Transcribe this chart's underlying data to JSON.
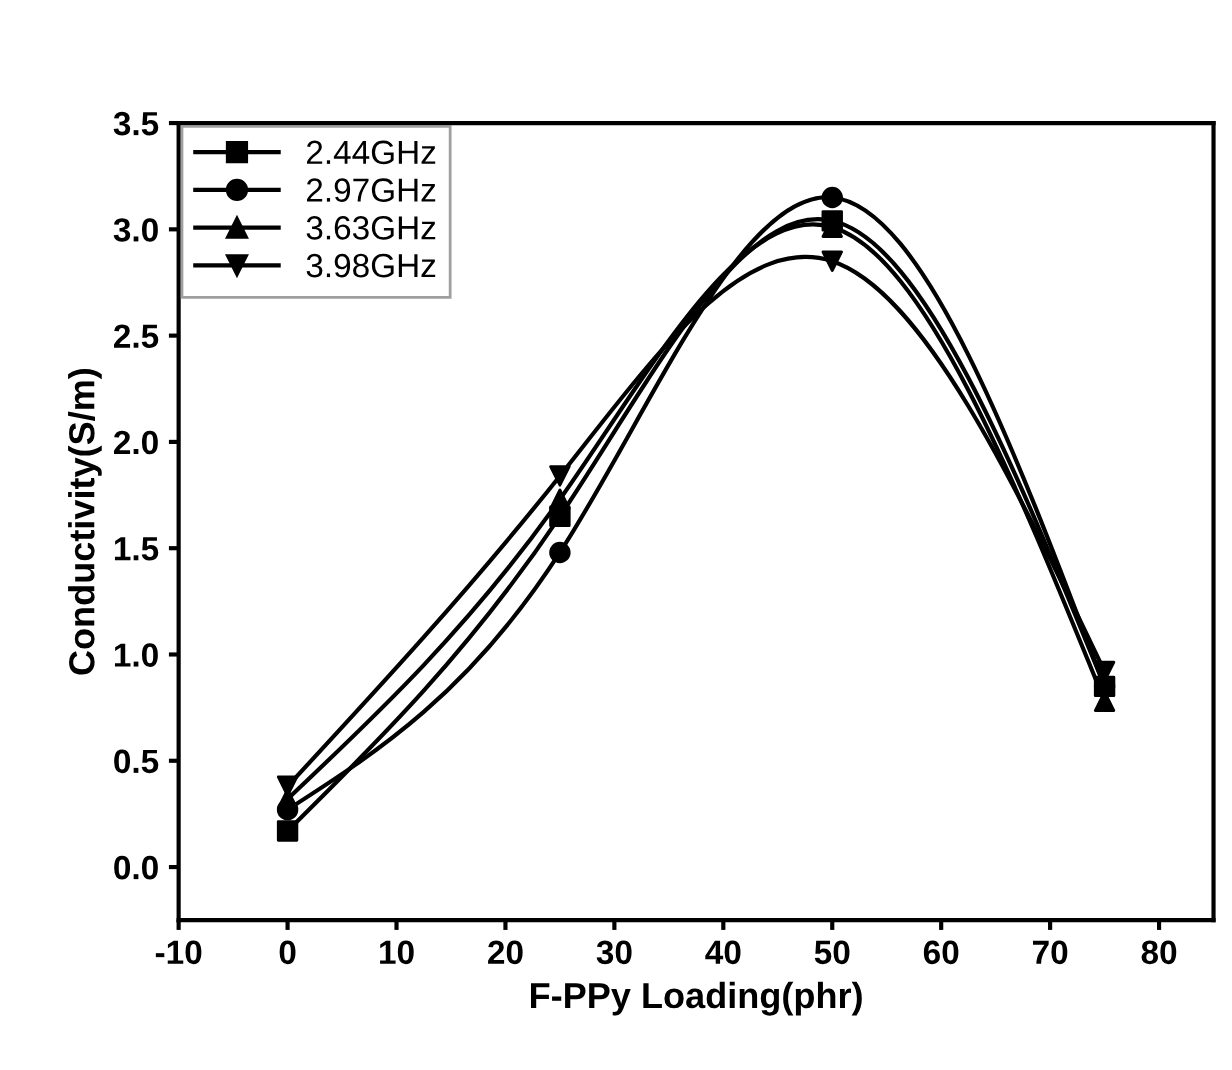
{
  "chart_data": {
    "type": "line",
    "xlabel": "F-PPy Loading(phr)",
    "ylabel": "Conductivity(S/m)",
    "x": [
      0,
      25,
      50,
      75
    ],
    "series": [
      {
        "name": "2.44GHz",
        "color": "#000000",
        "marker": "square",
        "values": [
          0.17,
          1.65,
          3.04,
          0.85
        ]
      },
      {
        "name": "2.97GHz",
        "color": "#000000",
        "marker": "circle",
        "values": [
          0.27,
          1.48,
          3.15,
          0.85
        ]
      },
      {
        "name": "3.63GHz",
        "color": "#000000",
        "marker": "triangle",
        "values": [
          0.32,
          1.73,
          3.01,
          0.78
        ]
      },
      {
        "name": "3.98GHz",
        "color": "#000000",
        "marker": "triangle_down",
        "values": [
          0.38,
          1.84,
          2.85,
          0.92
        ]
      }
    ],
    "xlim": [
      -10,
      85
    ],
    "xticks": [
      -10,
      0,
      10,
      20,
      30,
      40,
      50,
      60,
      70,
      80
    ],
    "ylim": [
      -0.25,
      3.5
    ],
    "yticks": [
      {
        "value": 0,
        "label": "0.0"
      },
      0.5,
      {
        "value": 1,
        "label": "1.0"
      },
      1.5,
      {
        "value": 2,
        "label": "2.0"
      },
      2.5,
      {
        "value": 3,
        "label": "3.0"
      },
      3.5
    ],
    "grid": false,
    "legend": "top left",
    "line_style": "solid"
  }
}
